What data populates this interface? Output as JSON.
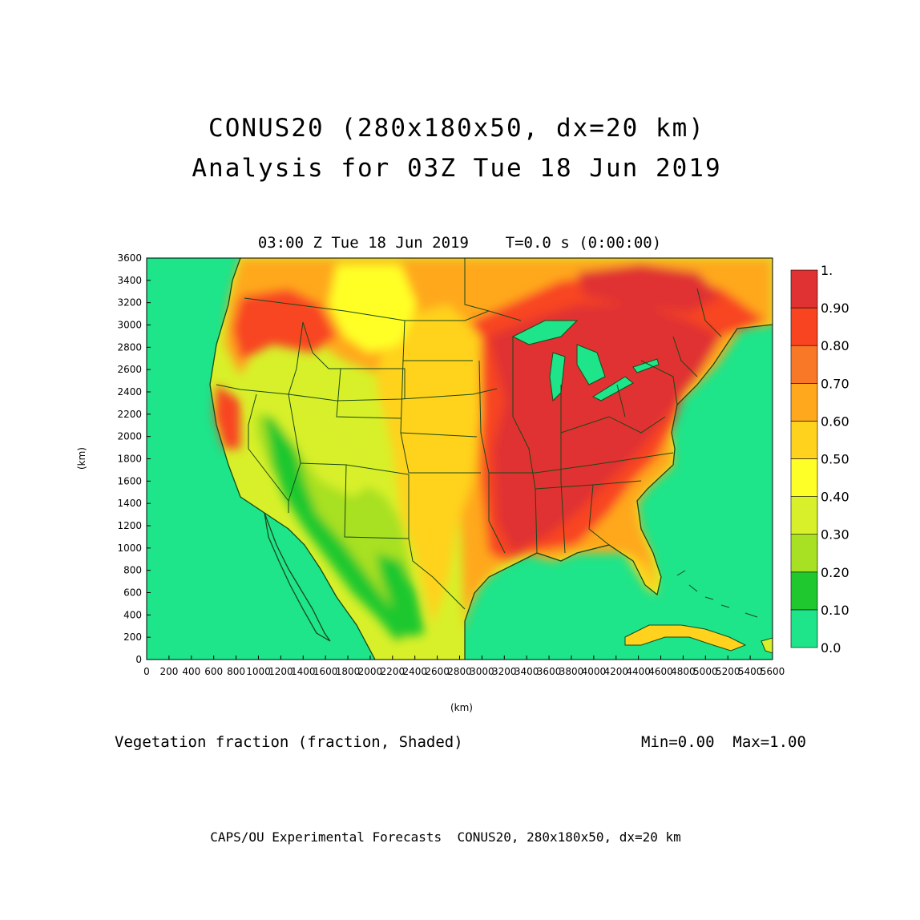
{
  "title_line1": "CONUS20 (280x180x50, dx=20 km)",
  "title_line2": "Analysis for 03Z Tue 18 Jun 2019",
  "subtitle": "03:00 Z Tue 18 Jun 2019    T=0.0 s (0:00:00)",
  "field_label": "Vegetation fraction (fraction, Shaded)",
  "min_max": "Min=0.00  Max=1.00",
  "footer": "CAPS/OU Experimental Forecasts  CONUS20, 280x180x50, dx=20 km",
  "x_axis": {
    "label": "(km)",
    "min": 0,
    "max": 5600,
    "step": 200,
    "ticks": [
      "0",
      "200",
      "400",
      "600",
      "800",
      "1000",
      "1200",
      "1400",
      "1600",
      "1800",
      "2000",
      "2200",
      "2400",
      "2600",
      "2800",
      "3000",
      "3200",
      "3400",
      "3600",
      "3800",
      "4000",
      "4200",
      "4400",
      "4600",
      "4800",
      "5000",
      "5200",
      "5400",
      "5600"
    ]
  },
  "y_axis": {
    "label": "(km)",
    "min": 0,
    "max": 3600,
    "step": 200,
    "ticks": [
      "0",
      "200",
      "400",
      "600",
      "800",
      "1000",
      "1200",
      "1400",
      "1600",
      "1800",
      "2000",
      "2200",
      "2400",
      "2600",
      "2800",
      "3000",
      "3200",
      "3400",
      "3600"
    ]
  },
  "legend": {
    "levels": [
      "0.0",
      "0.10",
      "0.20",
      "0.30",
      "0.40",
      "0.50",
      "0.60",
      "0.70",
      "0.80",
      "0.90",
      "1."
    ],
    "colors": [
      "#1ee48a",
      "#1ec82e",
      "#a8e024",
      "#d8f02a",
      "#ffff28",
      "#ffd21e",
      "#ffa81e",
      "#f87828",
      "#f84420",
      "#e03232"
    ]
  },
  "map_colors": {
    "ocean": "#1ee48a",
    "boundaries": "#184818"
  }
}
